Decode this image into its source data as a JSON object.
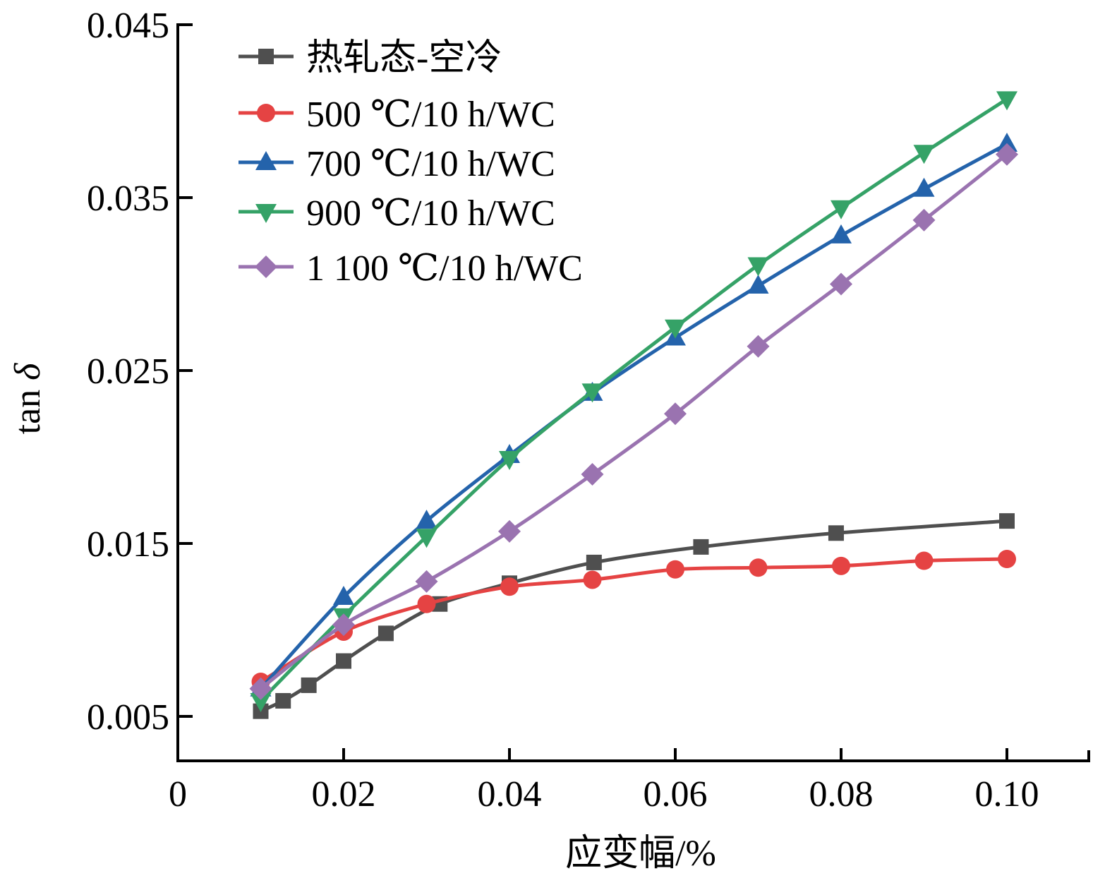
{
  "chart_data": {
    "type": "line",
    "title": "",
    "xlabel": "应变幅/%",
    "ylabel": "tan δ",
    "ylabel_parts": {
      "text": "tan ",
      "symbol": "δ"
    },
    "xlim": [
      0,
      0.11
    ],
    "ylim": [
      0.0024,
      0.045
    ],
    "xticks": [
      0,
      0.02,
      0.04,
      0.06,
      0.08,
      0.1
    ],
    "xtick_labels": [
      "0",
      "0.02",
      "0.04",
      "0.06",
      "0.08",
      "0.10"
    ],
    "yticks": [
      0.005,
      0.015,
      0.025,
      0.035,
      0.045
    ],
    "ytick_labels": [
      "0.005",
      "0.015",
      "0.025",
      "0.035",
      "0.045"
    ],
    "grid": false,
    "legend_position": "top-left",
    "series": [
      {
        "name": "热轧态-空冷",
        "color": "#4f4f4f",
        "marker": "square",
        "x": [
          0.01,
          0.0127,
          0.0158,
          0.02,
          0.0251,
          0.0316,
          0.04,
          0.0502,
          0.0631,
          0.0794,
          0.1
        ],
        "y": [
          0.0053,
          0.0059,
          0.0068,
          0.0082,
          0.0098,
          0.0115,
          0.0127,
          0.0139,
          0.0148,
          0.0156,
          0.0163
        ]
      },
      {
        "name": "500 ℃/10 h/WC",
        "color": "#e54343",
        "marker": "circle",
        "x": [
          0.01,
          0.02,
          0.03,
          0.04,
          0.05,
          0.06,
          0.07,
          0.08,
          0.09,
          0.1
        ],
        "y": [
          0.007,
          0.0099,
          0.0115,
          0.0125,
          0.0129,
          0.0135,
          0.0136,
          0.0137,
          0.014,
          0.0141
        ]
      },
      {
        "name": "700 ℃/10 h/WC",
        "color": "#2463ab",
        "marker": "triangle-up",
        "x": [
          0.01,
          0.02,
          0.03,
          0.04,
          0.05,
          0.06,
          0.07,
          0.08,
          0.09,
          0.1
        ],
        "y": [
          0.0066,
          0.0119,
          0.0163,
          0.0201,
          0.0237,
          0.0269,
          0.0299,
          0.0328,
          0.0355,
          0.0381
        ]
      },
      {
        "name": "900 ℃/10 h/WC",
        "color": "#35a267",
        "marker": "triangle-down",
        "x": [
          0.01,
          0.02,
          0.03,
          0.04,
          0.05,
          0.06,
          0.07,
          0.08,
          0.09,
          0.1
        ],
        "y": [
          0.0059,
          0.0108,
          0.0154,
          0.0199,
          0.0238,
          0.0275,
          0.0311,
          0.0344,
          0.0376,
          0.0407
        ]
      },
      {
        "name": "1 100 ℃/10 h/WC",
        "color": "#9a73b0",
        "marker": "diamond",
        "x": [
          0.01,
          0.02,
          0.03,
          0.04,
          0.05,
          0.06,
          0.07,
          0.08,
          0.09,
          0.1
        ],
        "y": [
          0.0066,
          0.0103,
          0.0128,
          0.0157,
          0.019,
          0.0225,
          0.0264,
          0.03,
          0.0337,
          0.0375
        ]
      }
    ]
  }
}
